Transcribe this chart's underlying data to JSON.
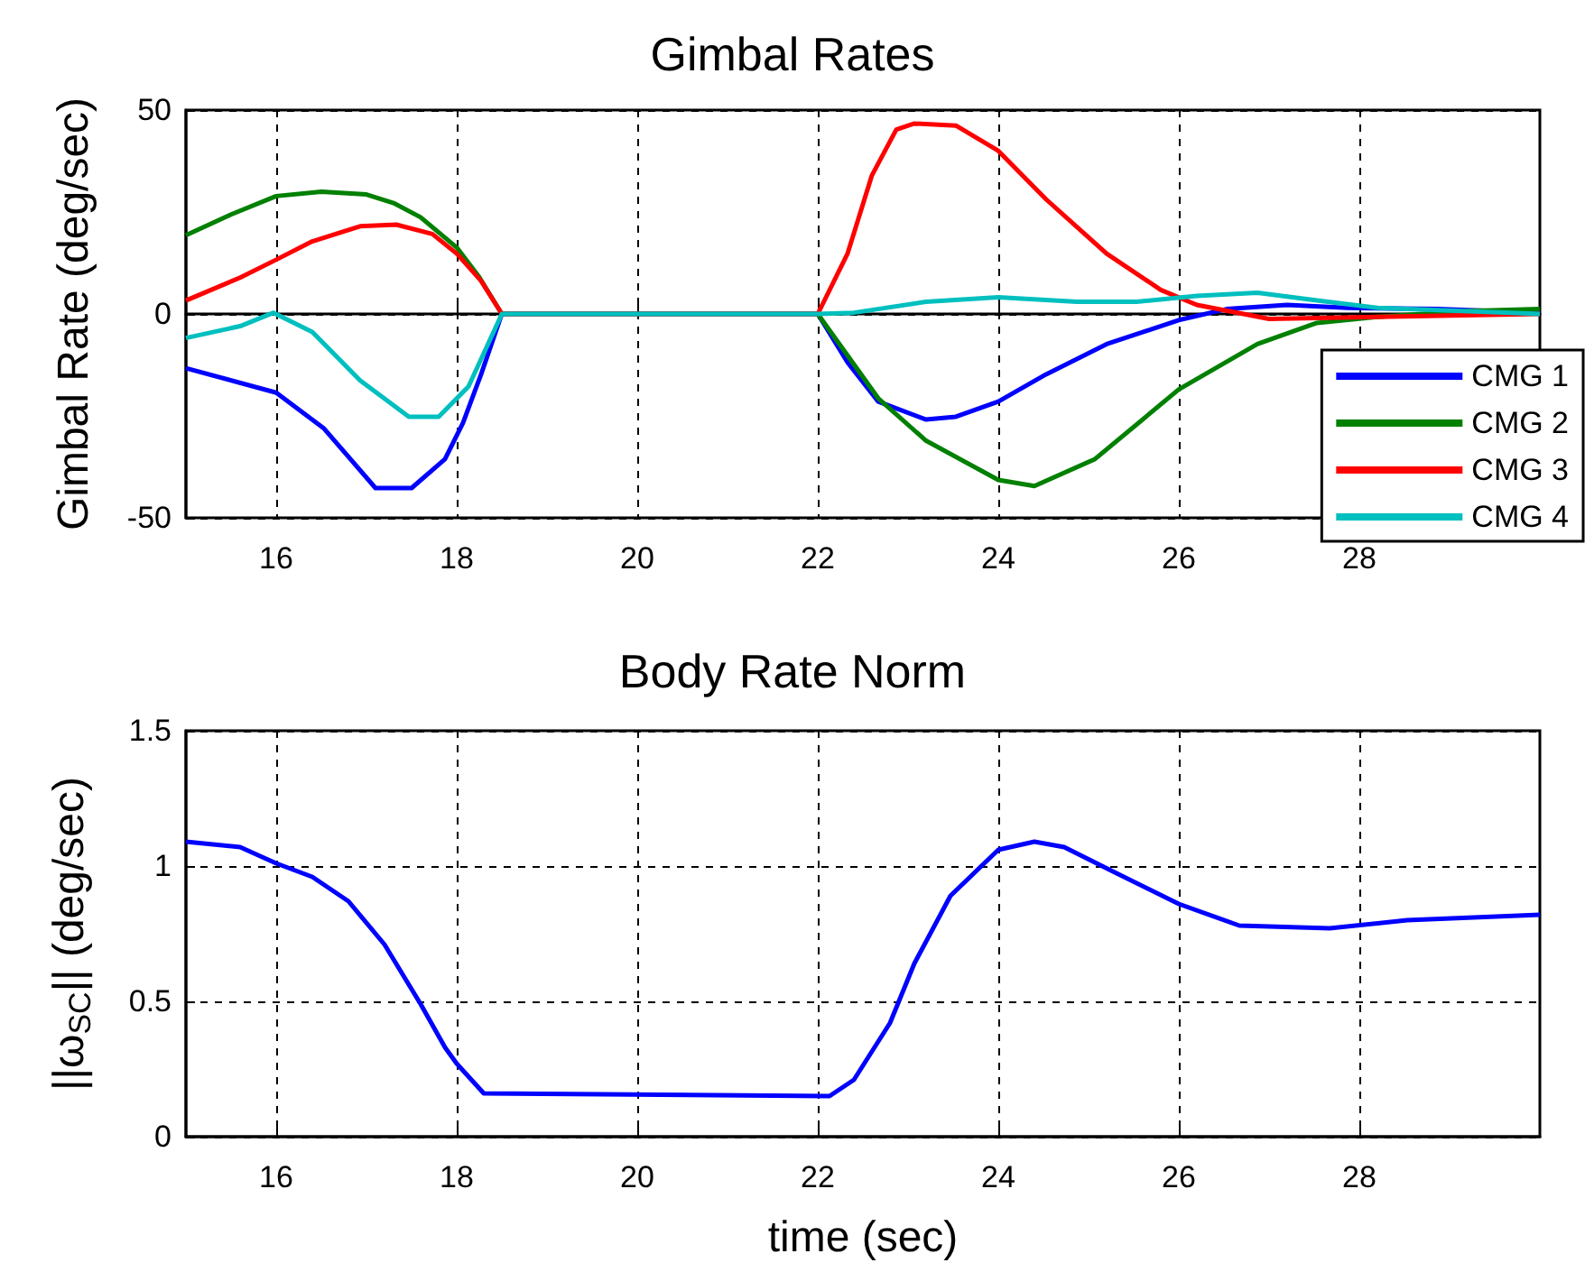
{
  "chart_data": [
    {
      "type": "line",
      "title": "Gimbal Rates",
      "ylabel": "Gimbal Rate (deg/sec)",
      "xlim": [
        15,
        30
      ],
      "xticks": [
        16,
        18,
        20,
        22,
        24,
        26,
        28
      ],
      "ylim": [
        -50,
        50
      ],
      "yticks": [
        -50,
        0,
        50
      ],
      "grid": true,
      "legend": "bottom right",
      "marker": "none",
      "line_style": "solid",
      "series": [
        {
          "name": "CMG 1",
          "color": "#0000ff",
          "x": [
            15,
            16,
            16.53,
            17.1,
            17.5,
            17.87,
            18.07,
            18.27,
            18.5,
            22,
            22.33,
            22.67,
            23.2,
            23.53,
            24,
            24.53,
            25.2,
            26,
            26.53,
            27.2,
            27.87,
            28.87,
            30
          ],
          "values": [
            -13.3,
            -19.3,
            -28.1,
            -42.7,
            -42.7,
            -35.6,
            -26.7,
            -14.8,
            0,
            0,
            -11.9,
            -21.5,
            -25.9,
            -25.2,
            -21.5,
            -14.8,
            -7.4,
            -1.5,
            1.2,
            2.2,
            1.5,
            1.2,
            0.3
          ]
        },
        {
          "name": "CMG 2",
          "color": "#008000",
          "x": [
            15,
            15.5,
            16,
            16.5,
            17,
            17.3,
            17.6,
            18,
            18.25,
            18.5,
            22,
            22.67,
            23.2,
            24,
            24.4,
            25.07,
            26,
            26.87,
            27.53,
            28.2,
            29.2,
            30
          ],
          "values": [
            19.3,
            24.4,
            28.9,
            30,
            29.3,
            27.2,
            23.7,
            16.3,
            9,
            0,
            0,
            -20.7,
            -31.1,
            -40.7,
            -42.2,
            -35.6,
            -18.5,
            -7.4,
            -2.2,
            -0.7,
            0.7,
            1.2
          ]
        },
        {
          "name": "CMG 3",
          "color": "#ff0000",
          "x": [
            15,
            15.6,
            16,
            16.4,
            16.93,
            17.33,
            17.73,
            18,
            18.27,
            18.5,
            22,
            22.33,
            22.6,
            22.87,
            23.07,
            23.53,
            24,
            24.53,
            25.2,
            25.8,
            26.2,
            27,
            28.2,
            30
          ],
          "values": [
            3.3,
            8.9,
            13.3,
            17.8,
            21.5,
            21.9,
            19.6,
            14.8,
            8.1,
            0,
            0,
            14.8,
            34,
            45.2,
            46.7,
            46.2,
            40,
            28.1,
            14.8,
            5.9,
            2.2,
            -1.2,
            -0.7,
            0
          ]
        },
        {
          "name": "CMG 4",
          "color": "#00bfbf",
          "x": [
            15,
            15.6,
            15.97,
            16.4,
            16.93,
            17.47,
            17.8,
            18.13,
            18.5,
            22,
            22.4,
            23.2,
            24,
            24.87,
            25.53,
            26.2,
            26.87,
            27.53,
            28.2,
            30
          ],
          "values": [
            -5.9,
            -3,
            0.3,
            -4.4,
            -16.3,
            -25.2,
            -25.2,
            -17.8,
            0,
            0,
            0.3,
            3,
            4.1,
            3,
            3,
            4.4,
            5.2,
            3.3,
            1.5,
            0
          ]
        }
      ]
    },
    {
      "type": "line",
      "title": "Body Rate Norm",
      "xlabel": "time (sec)",
      "ylabel": "||ω$_{SC}$|| (deg/sec)",
      "xlim": [
        15,
        30
      ],
      "xticks": [
        16,
        18,
        20,
        22,
        24,
        26,
        28
      ],
      "ylim": [
        0,
        1.5
      ],
      "yticks": [
        0,
        0.5,
        1,
        1.5
      ],
      "grid": true,
      "marker": "none",
      "line_style": "solid",
      "series": [
        {
          "color": "#0000ff",
          "x": [
            15,
            15.6,
            16,
            16.4,
            16.8,
            17.2,
            17.6,
            17.87,
            18,
            18.3,
            22.13,
            22.4,
            22.8,
            23.07,
            23.47,
            24,
            24.4,
            24.73,
            25.27,
            26,
            26.67,
            27.67,
            28.53,
            30
          ],
          "values": [
            1.09,
            1.07,
            1.01,
            0.96,
            0.87,
            0.71,
            0.49,
            0.33,
            0.27,
            0.16,
            0.15,
            0.21,
            0.42,
            0.64,
            0.89,
            1.06,
            1.09,
            1.07,
            0.98,
            0.86,
            0.78,
            0.77,
            0.8,
            0.82
          ]
        }
      ]
    }
  ]
}
